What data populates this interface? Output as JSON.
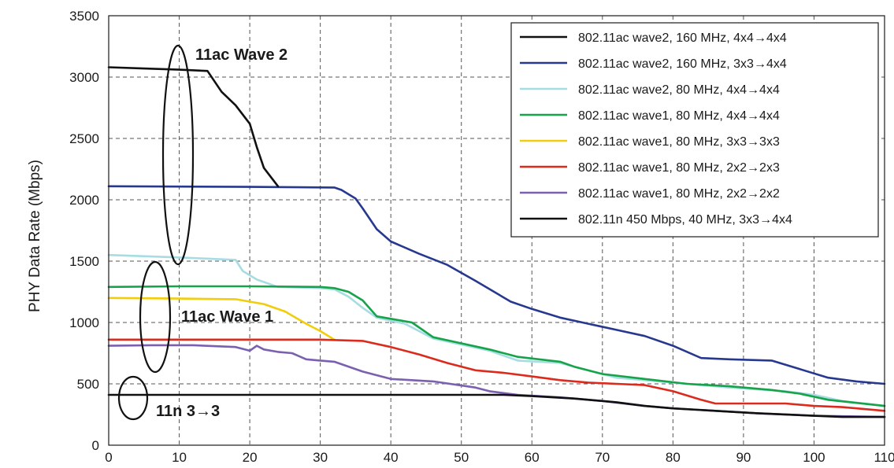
{
  "chart_data": {
    "type": "line",
    "title": "",
    "xlabel": "",
    "ylabel": "PHY Data Rate (Mbps)",
    "xlim": [
      0,
      110
    ],
    "ylim": [
      0,
      3500
    ],
    "xticks": [
      0,
      10,
      20,
      30,
      40,
      50,
      60,
      70,
      80,
      90,
      100,
      110
    ],
    "yticks": [
      0,
      500,
      1000,
      1500,
      2000,
      2500,
      3000,
      3500
    ],
    "grid": true,
    "legend_position": "top-right",
    "series": [
      {
        "name": "802.11ac wave2, 160 MHz, 4x4→4x4",
        "color": "#111111",
        "points": [
          [
            0,
            3080
          ],
          [
            5,
            3070
          ],
          [
            10,
            3060
          ],
          [
            14,
            3050
          ],
          [
            16,
            2880
          ],
          [
            18,
            2770
          ],
          [
            20,
            2620
          ],
          [
            21,
            2430
          ],
          [
            22,
            2260
          ],
          [
            24,
            2110
          ]
        ]
      },
      {
        "name": "802.11ac wave2, 160 MHz, 3x3→4x4",
        "color": "#27388f",
        "points": [
          [
            0,
            2110
          ],
          [
            20,
            2105
          ],
          [
            32,
            2100
          ],
          [
            33,
            2080
          ],
          [
            35,
            2010
          ],
          [
            36,
            1930
          ],
          [
            38,
            1760
          ],
          [
            40,
            1660
          ],
          [
            44,
            1560
          ],
          [
            48,
            1470
          ],
          [
            52,
            1340
          ],
          [
            57,
            1170
          ],
          [
            60,
            1110
          ],
          [
            64,
            1040
          ],
          [
            68,
            990
          ],
          [
            72,
            940
          ],
          [
            76,
            890
          ],
          [
            80,
            810
          ],
          [
            84,
            710
          ],
          [
            88,
            700
          ],
          [
            94,
            690
          ],
          [
            98,
            620
          ],
          [
            102,
            550
          ],
          [
            106,
            520
          ],
          [
            110,
            500
          ]
        ]
      },
      {
        "name": "802.11ac wave2, 80 MHz, 4x4→4x4",
        "color": "#a6dde3",
        "points": [
          [
            0,
            1550
          ],
          [
            10,
            1530
          ],
          [
            18,
            1510
          ],
          [
            19,
            1420
          ],
          [
            21,
            1350
          ],
          [
            24,
            1290
          ],
          [
            30,
            1280
          ],
          [
            32,
            1270
          ],
          [
            34,
            1210
          ],
          [
            36,
            1120
          ],
          [
            38,
            1040
          ],
          [
            42,
            990
          ],
          [
            46,
            870
          ],
          [
            50,
            820
          ],
          [
            54,
            770
          ],
          [
            58,
            690
          ],
          [
            64,
            670
          ],
          [
            68,
            610
          ],
          [
            72,
            550
          ],
          [
            78,
            520
          ],
          [
            82,
            500
          ],
          [
            88,
            470
          ],
          [
            96,
            440
          ],
          [
            100,
            410
          ],
          [
            104,
            360
          ],
          [
            110,
            320
          ]
        ]
      },
      {
        "name": "802.11ac wave1, 80 MHz, 4x4→4x4",
        "color": "#16a34a",
        "points": [
          [
            0,
            1290
          ],
          [
            10,
            1295
          ],
          [
            20,
            1295
          ],
          [
            30,
            1290
          ],
          [
            32,
            1280
          ],
          [
            34,
            1250
          ],
          [
            36,
            1180
          ],
          [
            38,
            1050
          ],
          [
            40,
            1030
          ],
          [
            43,
            1000
          ],
          [
            46,
            880
          ],
          [
            50,
            830
          ],
          [
            54,
            780
          ],
          [
            58,
            720
          ],
          [
            64,
            680
          ],
          [
            66,
            640
          ],
          [
            70,
            580
          ],
          [
            76,
            540
          ],
          [
            82,
            500
          ],
          [
            88,
            480
          ],
          [
            94,
            450
          ],
          [
            98,
            420
          ],
          [
            102,
            370
          ],
          [
            110,
            320
          ]
        ]
      },
      {
        "name": "802.11ac wave1, 80 MHz, 3x3→3x3",
        "color": "#f2cd0c",
        "points": [
          [
            0,
            1200
          ],
          [
            10,
            1195
          ],
          [
            18,
            1190
          ],
          [
            22,
            1150
          ],
          [
            25,
            1090
          ],
          [
            28,
            990
          ],
          [
            30,
            930
          ],
          [
            32,
            860
          ]
        ]
      },
      {
        "name": "802.11ac wave1, 80 MHz, 2x2→2x3",
        "color": "#dc2a1c",
        "points": [
          [
            0,
            860
          ],
          [
            10,
            860
          ],
          [
            20,
            860
          ],
          [
            30,
            860
          ],
          [
            36,
            850
          ],
          [
            40,
            800
          ],
          [
            44,
            740
          ],
          [
            48,
            670
          ],
          [
            52,
            610
          ],
          [
            56,
            590
          ],
          [
            60,
            560
          ],
          [
            64,
            530
          ],
          [
            68,
            510
          ],
          [
            72,
            500
          ],
          [
            76,
            490
          ],
          [
            80,
            440
          ],
          [
            84,
            370
          ],
          [
            86,
            340
          ],
          [
            90,
            340
          ],
          [
            96,
            340
          ],
          [
            100,
            320
          ],
          [
            104,
            310
          ],
          [
            110,
            280
          ]
        ]
      },
      {
        "name": "802.11ac wave1, 80 MHz, 2x2→2x2",
        "color": "#7b5fb0",
        "points": [
          [
            0,
            810
          ],
          [
            6,
            815
          ],
          [
            12,
            815
          ],
          [
            18,
            800
          ],
          [
            20,
            770
          ],
          [
            21,
            810
          ],
          [
            22,
            780
          ],
          [
            24,
            760
          ],
          [
            26,
            750
          ],
          [
            28,
            700
          ],
          [
            30,
            690
          ],
          [
            32,
            680
          ],
          [
            36,
            600
          ],
          [
            40,
            540
          ],
          [
            46,
            520
          ],
          [
            52,
            470
          ],
          [
            54,
            440
          ],
          [
            58,
            410
          ],
          [
            64,
            390
          ],
          [
            70,
            360
          ],
          [
            76,
            320
          ],
          [
            80,
            300
          ],
          [
            86,
            280
          ],
          [
            92,
            260
          ],
          [
            100,
            240
          ],
          [
            110,
            230
          ]
        ]
      },
      {
        "name": "802.11n 450 Mbps, 40 MHz, 3x3→4x4",
        "color": "#111111",
        "points": [
          [
            0,
            410
          ],
          [
            20,
            410
          ],
          [
            40,
            410
          ],
          [
            56,
            410
          ],
          [
            60,
            400
          ],
          [
            66,
            380
          ],
          [
            72,
            350
          ],
          [
            76,
            320
          ],
          [
            80,
            300
          ],
          [
            86,
            280
          ],
          [
            92,
            260
          ],
          [
            100,
            240
          ],
          [
            104,
            230
          ],
          [
            110,
            230
          ]
        ]
      }
    ],
    "annotations": [
      {
        "text": "11ac Wave 2"
      },
      {
        "text": "11ac Wave 1"
      },
      {
        "text": "11n 3→3"
      }
    ]
  }
}
